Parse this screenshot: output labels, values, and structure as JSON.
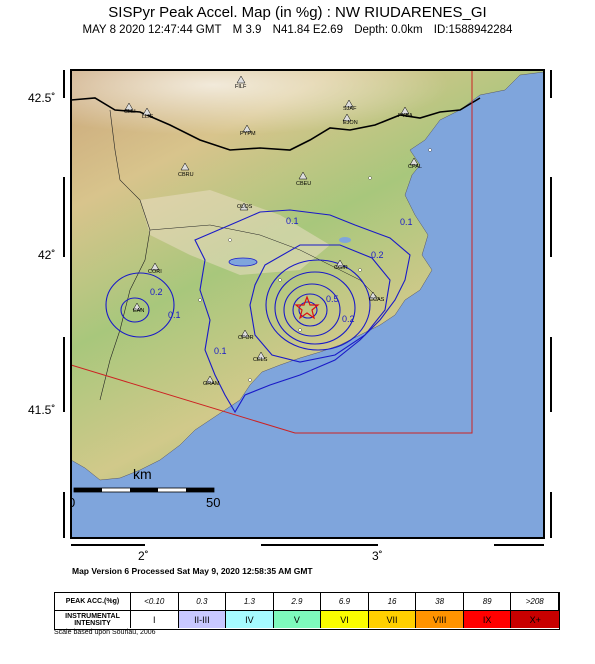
{
  "title": "SISPyr Peak Accel. Map (in %g) : NW RIUDARENES_GI",
  "subtitle": {
    "date": "MAY 8 2020 12:47:44  GMT",
    "magnitude": "M 3.9",
    "location": "N41.84 E2.69",
    "depth": "Depth: 0.0km",
    "id": "ID:1588942284"
  },
  "axes": {
    "lat_labels": [
      "42.5˚",
      "42˚",
      "41.5˚"
    ],
    "lon_labels": [
      "2˚",
      "3˚"
    ]
  },
  "scalebar": {
    "unit": "km",
    "start": "0",
    "end": "50"
  },
  "stations": [
    "FILF",
    "CLLI",
    "LLIS",
    "SJAF",
    "EJON",
    "PYBA",
    "PYPM",
    "CPAL",
    "CBRU",
    "CBEU",
    "OLOS",
    "CORI",
    "CGIR",
    "CCAS",
    "CFOR",
    "CELS",
    "GRAM",
    "EAN"
  ],
  "contour_labels": [
    "0.1",
    "0.2",
    "0.1",
    "0.2",
    "0.1",
    "0.5",
    "0.1",
    "0.2"
  ],
  "colors": {
    "sea": "#7fa5dc",
    "contour": "#1a1ac8",
    "border": "#000000",
    "box": "#cc2222",
    "epicenter": "#dd1111"
  },
  "version_text": "Map Version 6 Processed Sat May  9, 2020 12:58:35 AM GMT",
  "legend": {
    "pga_header": "PEAK ACC.(%g)",
    "intensity_header": "INSTRUMENTAL INTENSITY",
    "pga_values": [
      "<0.10",
      "0.3",
      "1.3",
      "2.9",
      "6.9",
      "16",
      "38",
      "89",
      ">208"
    ],
    "intensity_values": [
      "I",
      "II-III",
      "IV",
      "V",
      "VI",
      "VII",
      "VIII",
      "IX",
      "X+"
    ],
    "intensity_colors": [
      "#ffffff",
      "#c8c8ff",
      "#a6fbff",
      "#7efabc",
      "#fafd00",
      "#ffd000",
      "#ff9300",
      "#ff0000",
      "#c80000"
    ]
  },
  "scale_note": "Scale based upon Souriau, 2006"
}
